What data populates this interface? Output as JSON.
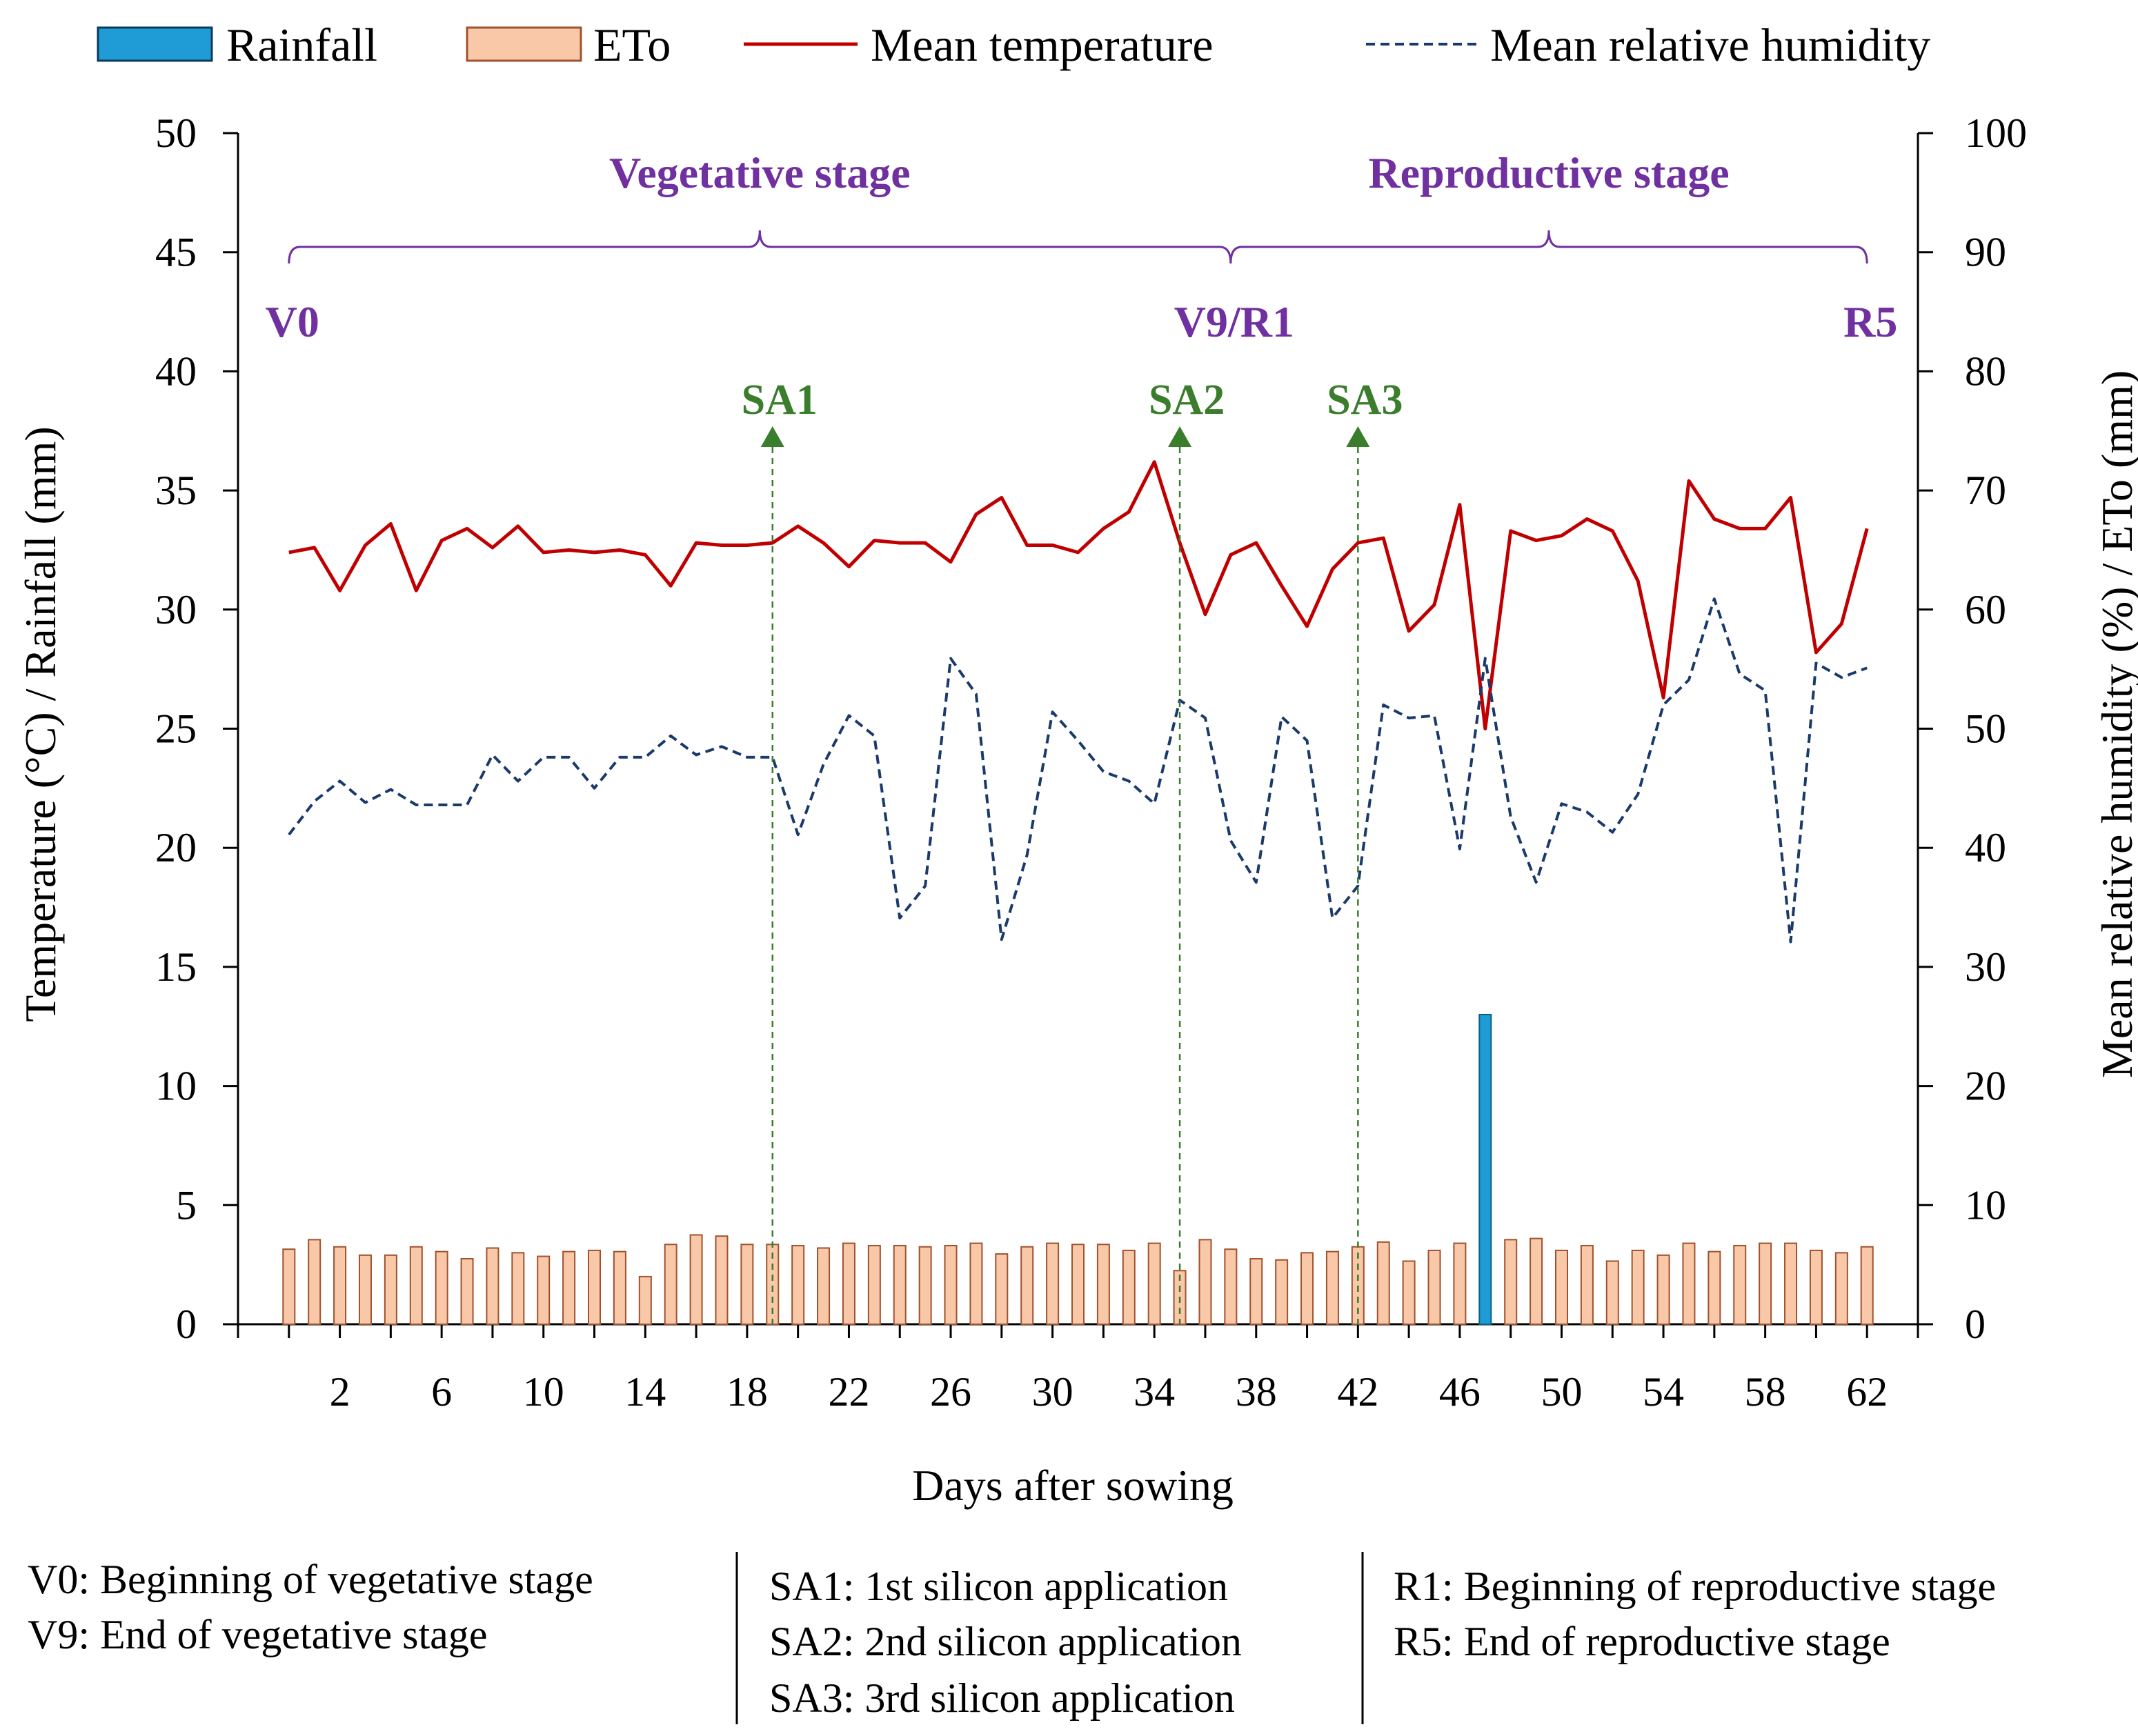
{
  "colors": {
    "rainfall": "#1f9bd6",
    "eto_fill": "#f8c8a8",
    "eto_stroke": "#a0522d",
    "temperature": "#c00000",
    "humidity": "#1a3a6b",
    "stage": "#7030a0",
    "application": "#3a7d2c"
  },
  "chart_data": {
    "type": "bar",
    "title": "",
    "xlabel": "Days after sowing",
    "ylabel": "Temperature (°C) / Rainfall (mm)",
    "y2label": "Mean relative humidity (%) / ETo (mm)",
    "xlim": [
      -2,
      64
    ],
    "ylim": [
      0,
      50
    ],
    "y2lim": [
      0,
      100
    ],
    "x_ticks": [
      "2",
      "6",
      "10",
      "14",
      "18",
      "22",
      "26",
      "30",
      "34",
      "38",
      "42",
      "46",
      "50",
      "54",
      "58",
      "62"
    ],
    "y_ticks": [
      "0",
      "5",
      "10",
      "15",
      "20",
      "25",
      "30",
      "35",
      "40",
      "45",
      "50"
    ],
    "y2_ticks": [
      "0",
      "10",
      "20",
      "30",
      "40",
      "50",
      "60",
      "70",
      "80",
      "90",
      "100"
    ],
    "legend": [
      {
        "label": "Rainfall",
        "kind": "bar"
      },
      {
        "label": "ETo",
        "kind": "bar"
      },
      {
        "label": "Mean temperature",
        "kind": "line"
      },
      {
        "label": "Mean relative humidity",
        "kind": "dashed"
      }
    ],
    "series": [
      {
        "name": "Rainfall",
        "axis": "left",
        "points": [
          {
            "x": 47,
            "y": 13.0
          }
        ]
      },
      {
        "name": "ETo",
        "axis": "right",
        "x_start": 0,
        "values": [
          6.3,
          7.1,
          6.5,
          5.8,
          5.8,
          6.5,
          6.1,
          5.5,
          6.4,
          6.0,
          5.7,
          6.1,
          6.2,
          6.1,
          4.0,
          6.7,
          7.5,
          7.4,
          6.7,
          6.7,
          6.6,
          6.4,
          6.8,
          6.6,
          6.6,
          6.5,
          6.6,
          6.8,
          5.9,
          6.5,
          6.8,
          6.7,
          6.7,
          6.2,
          6.8,
          4.5,
          7.1,
          6.3,
          5.5,
          5.4,
          6.0,
          6.1,
          6.5,
          6.9,
          5.3,
          6.2,
          6.8,
          0.0,
          7.1,
          7.2,
          6.2,
          6.6,
          5.3,
          6.2,
          5.8,
          6.8,
          6.1,
          6.6,
          6.8,
          6.8,
          6.2,
          6.0,
          6.5
        ]
      },
      {
        "name": "Mean temperature",
        "axis": "left",
        "x_start": 0,
        "values": [
          32.4,
          32.6,
          30.8,
          32.7,
          33.6,
          30.8,
          32.9,
          33.4,
          32.6,
          33.5,
          32.4,
          32.5,
          32.4,
          32.5,
          32.3,
          31.0,
          32.8,
          32.7,
          32.7,
          32.8,
          33.5,
          32.8,
          31.8,
          32.9,
          32.8,
          32.8,
          32.0,
          34.0,
          34.7,
          32.7,
          32.7,
          32.4,
          33.4,
          34.1,
          36.2,
          32.8,
          29.8,
          32.3,
          32.8,
          31.0,
          29.3,
          31.7,
          32.8,
          33.0,
          29.1,
          30.2,
          34.4,
          25.0,
          33.3,
          32.9,
          33.1,
          33.8,
          33.3,
          31.2,
          26.3,
          35.4,
          33.8,
          33.4,
          33.4,
          34.7,
          28.2,
          29.4,
          33.4
        ]
      },
      {
        "name": "Mean relative humidity",
        "axis": "right",
        "x_start": 0,
        "values": [
          41.1,
          43.9,
          45.6,
          43.8,
          44.9,
          43.6,
          43.6,
          43.6,
          47.8,
          45.6,
          47.6,
          47.6,
          45.0,
          47.6,
          47.6,
          49.4,
          47.8,
          48.5,
          47.6,
          47.6,
          41.1,
          47.0,
          51.1,
          49.4,
          34.1,
          36.8,
          55.9,
          52.9,
          32.3,
          39.4,
          51.4,
          49.0,
          46.4,
          45.6,
          43.7,
          52.4,
          50.9,
          40.6,
          37.1,
          51.0,
          49.0,
          34.1,
          36.8,
          52.0,
          50.9,
          51.1,
          39.9,
          55.9,
          42.6,
          37.1,
          43.7,
          43.0,
          41.3,
          44.5,
          52.0,
          54.1,
          60.9,
          54.6,
          53.2,
          32.1,
          55.5,
          54.3,
          55.1
        ]
      }
    ],
    "stages": [
      {
        "label": "Vegetative stage",
        "from": 0,
        "to": 37
      },
      {
        "label": "Reproductive stage",
        "from": 37,
        "to": 62
      }
    ],
    "stage_markers": [
      {
        "label": "V0",
        "x": 0
      },
      {
        "label": "V9/R1",
        "x": 37
      },
      {
        "label": "R5",
        "x": 62
      }
    ],
    "applications": [
      {
        "label": "SA1",
        "x": 19
      },
      {
        "label": "SA2",
        "x": 35
      },
      {
        "label": "SA3",
        "x": 42
      }
    ],
    "footnotes": [
      [
        "V0: Beginning of vegetative stage",
        "V9: End of vegetative stage"
      ],
      [
        "SA1:  1st silicon application",
        "SA2:  2nd silicon application",
        "SA3:  3rd silicon application"
      ],
      [
        "R1: Beginning of reproductive stage",
        "R5: End of reproductive stage"
      ]
    ]
  }
}
